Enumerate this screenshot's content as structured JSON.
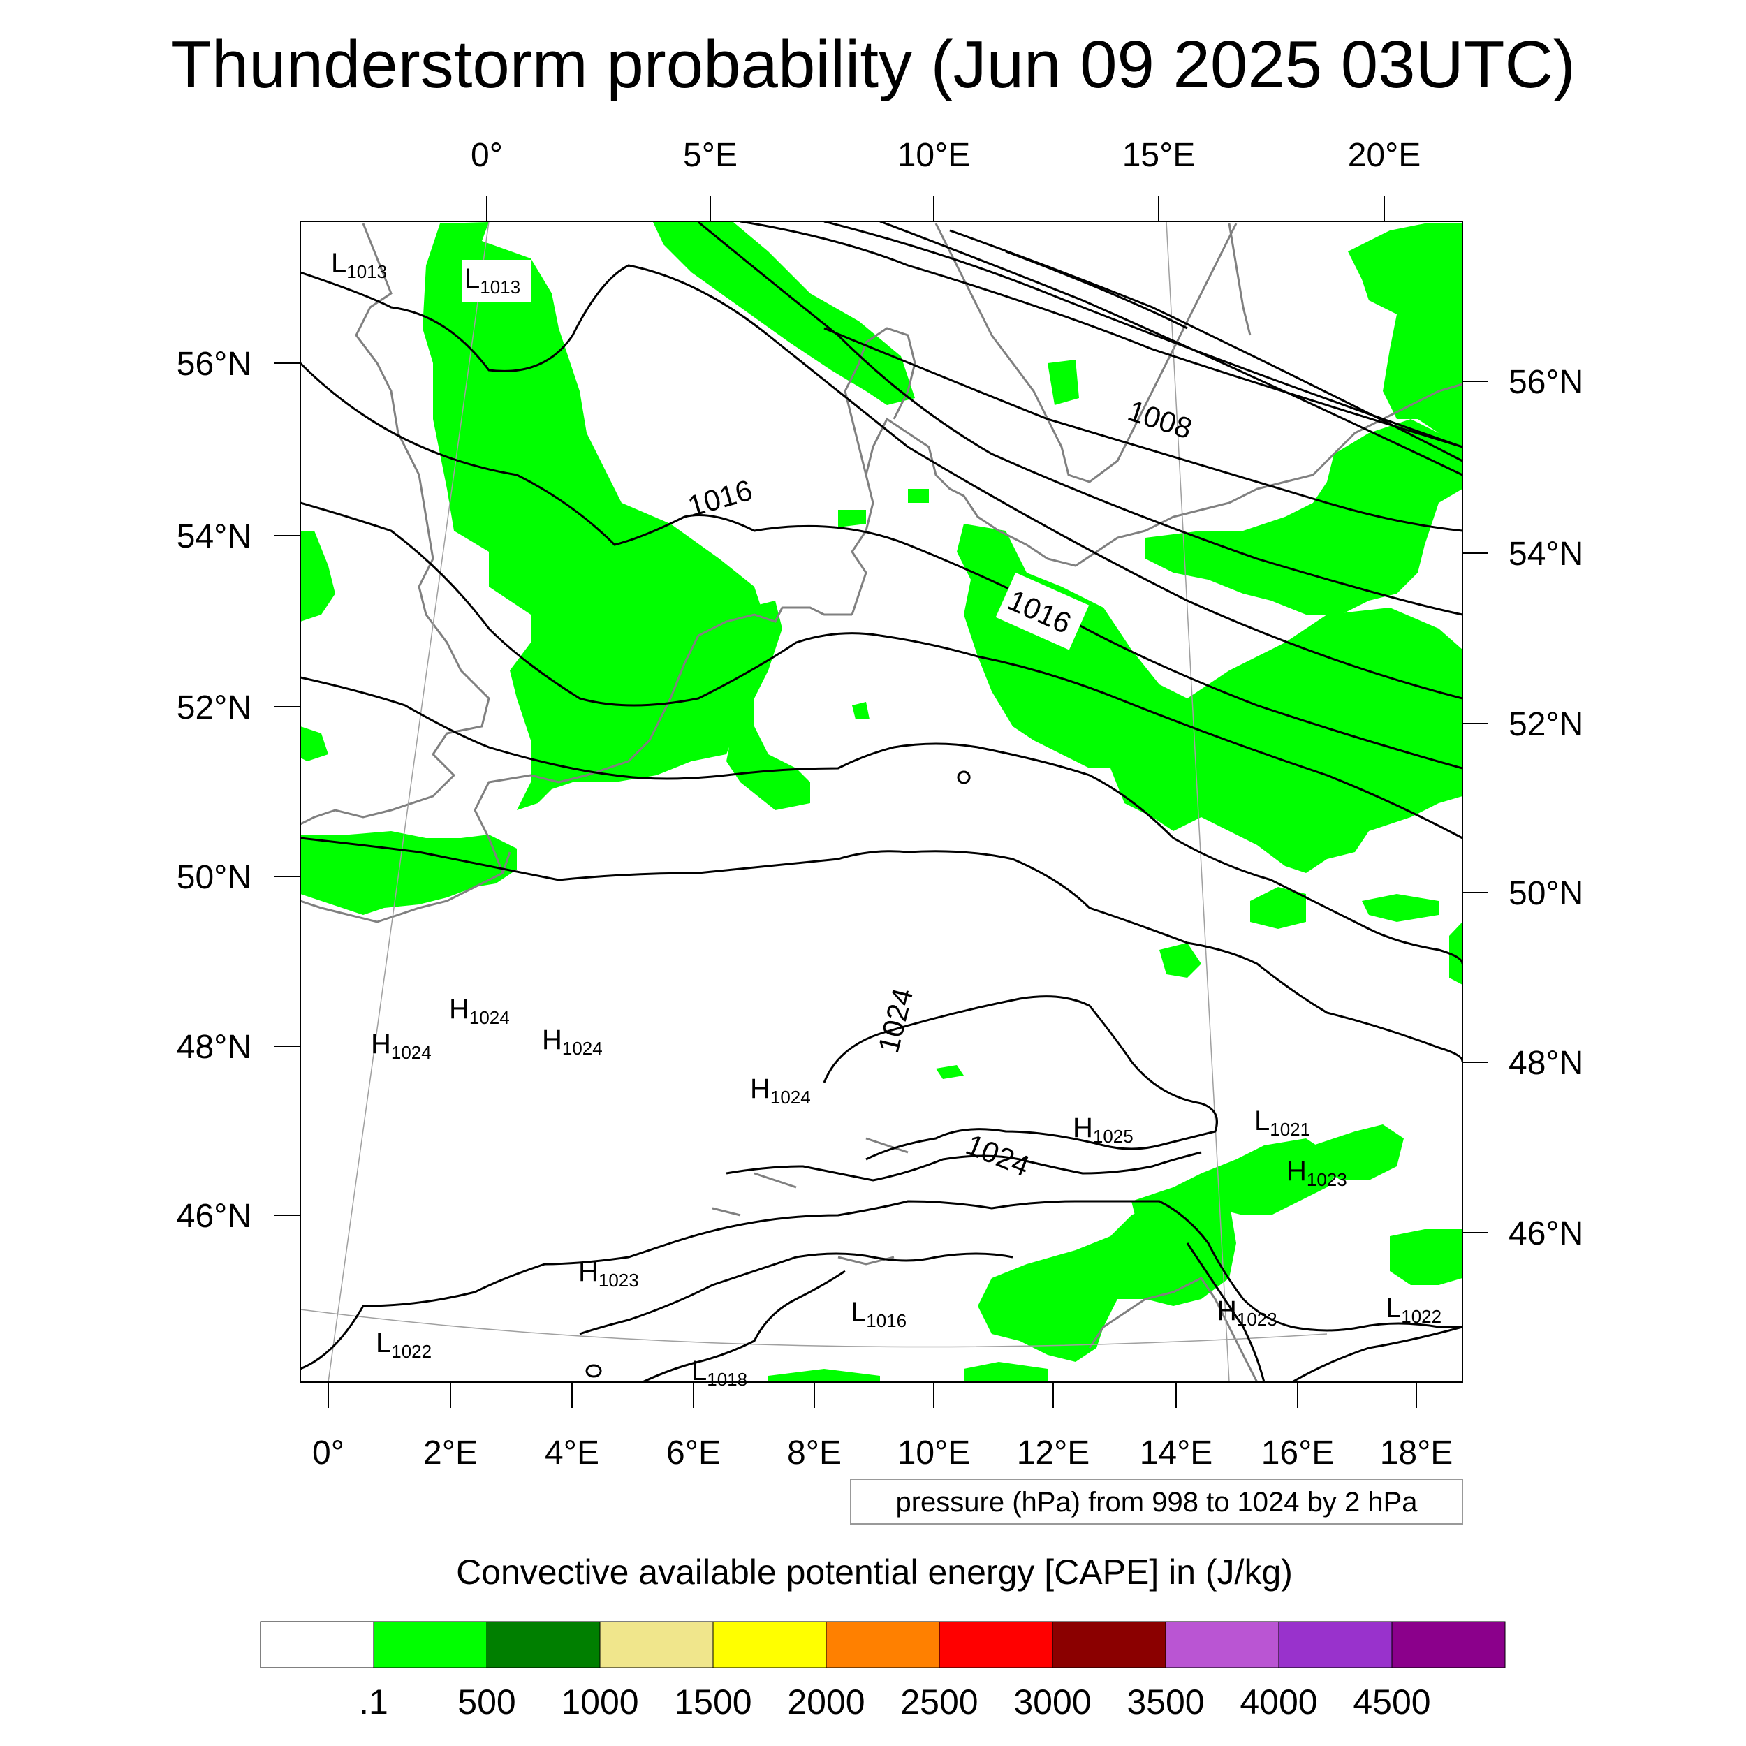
{
  "title": "Thunderstorm probability (Jun 09 2025 03UTC)",
  "top_lon_ticks": [
    "0°",
    "5°E",
    "10°E",
    "15°E",
    "20°E"
  ],
  "bottom_lon_ticks": [
    "0°",
    "2°E",
    "4°E",
    "6°E",
    "8°E",
    "10°E",
    "12°E",
    "14°E",
    "16°E",
    "18°E"
  ],
  "left_lat_ticks": [
    "56°N",
    "54°N",
    "52°N",
    "50°N",
    "48°N",
    "46°N"
  ],
  "right_lat_ticks": [
    "56°N",
    "54°N",
    "52°N",
    "50°N",
    "48°N",
    "46°N"
  ],
  "pressure_centers": [
    {
      "type": "L",
      "value": "1013"
    },
    {
      "type": "L",
      "value": "1013"
    },
    {
      "type": "H",
      "value": "1024"
    },
    {
      "type": "H",
      "value": "1024"
    },
    {
      "type": "H",
      "value": "1024"
    },
    {
      "type": "H",
      "value": "1024"
    },
    {
      "type": "H",
      "value": "1025"
    },
    {
      "type": "L",
      "value": "1021"
    },
    {
      "type": "H",
      "value": "1023"
    },
    {
      "type": "H",
      "value": "1023"
    },
    {
      "type": "L",
      "value": "1016"
    },
    {
      "type": "H",
      "value": "1023"
    },
    {
      "type": "L",
      "value": "1022"
    },
    {
      "type": "L",
      "value": "1022"
    },
    {
      "type": "L",
      "value": "1018"
    }
  ],
  "isobar_labels": [
    "1008",
    "1016",
    "1016",
    "1024",
    "1024"
  ],
  "contour_info": "pressure (hPa) from 998 to 1024 by 2 hPa",
  "colorbar": {
    "title": "Convective available potential energy [CAPE] in (J/kg)",
    "colors": [
      "#ffffff",
      "#00ff00",
      "#007f00",
      "#f0e68c",
      "#ffff00",
      "#ff8000",
      "#ff0000",
      "#8b0000",
      "#ba55d3",
      "#9932cc",
      "#8b008b"
    ],
    "labels": [
      ".1",
      "500",
      "1000",
      "1500",
      "2000",
      "2500",
      "3000",
      "3500",
      "4000",
      "4500"
    ]
  },
  "colors": {
    "cape_low": "#00ff00",
    "coast": "#808080",
    "isobar": "#000000"
  }
}
